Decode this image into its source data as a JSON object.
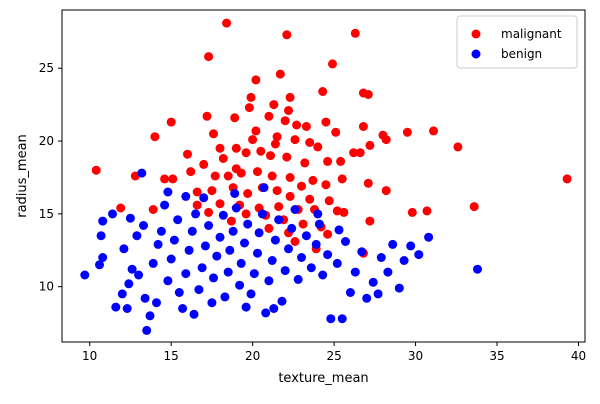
{
  "chart_data": {
    "type": "scatter",
    "title": "",
    "xlabel": "texture_mean",
    "ylabel": "radius_mean",
    "xlim": [
      8.3,
      40.4
    ],
    "ylim": [
      6.2,
      29.0
    ],
    "xticks": [
      10,
      15,
      20,
      25,
      30,
      35,
      40
    ],
    "yticks": [
      10,
      15,
      20,
      25
    ],
    "grid": false,
    "legend_position": "top-right",
    "series": [
      {
        "name": "malignant",
        "color": "#ff0000",
        "points": [
          [
            18.4,
            28.1
          ],
          [
            22.1,
            27.3
          ],
          [
            26.3,
            27.4
          ],
          [
            17.3,
            25.8
          ],
          [
            24.9,
            25.3
          ],
          [
            21.7,
            24.6
          ],
          [
            20.2,
            24.2
          ],
          [
            22.3,
            23.0
          ],
          [
            24.3,
            23.4
          ],
          [
            26.8,
            23.3
          ],
          [
            27.1,
            23.2
          ],
          [
            19.9,
            23.0
          ],
          [
            19.8,
            22.3
          ],
          [
            21.3,
            22.5
          ],
          [
            22.2,
            22.1
          ],
          [
            17.2,
            21.7
          ],
          [
            18.9,
            21.6
          ],
          [
            21.0,
            21.7
          ],
          [
            22.0,
            21.4
          ],
          [
            22.7,
            21.1
          ],
          [
            23.3,
            21.0
          ],
          [
            24.5,
            21.3
          ],
          [
            15.0,
            21.3
          ],
          [
            26.8,
            21.0
          ],
          [
            28.0,
            20.4
          ],
          [
            29.5,
            20.6
          ],
          [
            31.1,
            20.7
          ],
          [
            32.6,
            19.6
          ],
          [
            14.0,
            20.3
          ],
          [
            17.6,
            20.5
          ],
          [
            20.0,
            20.1
          ],
          [
            21.5,
            20.3
          ],
          [
            22.6,
            20.1
          ],
          [
            23.5,
            19.9
          ],
          [
            25.1,
            20.6
          ],
          [
            26.2,
            19.2
          ],
          [
            27.2,
            19.7
          ],
          [
            28.2,
            20.1
          ],
          [
            16.0,
            19.1
          ],
          [
            17.0,
            18.4
          ],
          [
            18.2,
            18.8
          ],
          [
            19.0,
            19.5
          ],
          [
            19.6,
            19.2
          ],
          [
            20.5,
            19.3
          ],
          [
            21.1,
            19.0
          ],
          [
            22.1,
            18.9
          ],
          [
            23.2,
            18.5
          ],
          [
            24.6,
            18.6
          ],
          [
            25.4,
            18.6
          ],
          [
            26.6,
            19.2
          ],
          [
            16.2,
            17.9
          ],
          [
            17.7,
            17.6
          ],
          [
            18.5,
            17.6
          ],
          [
            19.3,
            17.8
          ],
          [
            20.3,
            17.9
          ],
          [
            21.2,
            17.6
          ],
          [
            22.3,
            17.5
          ],
          [
            23.7,
            17.3
          ],
          [
            24.5,
            17.0
          ],
          [
            25.5,
            17.4
          ],
          [
            27.1,
            17.1
          ],
          [
            28.2,
            16.6
          ],
          [
            15.1,
            17.4
          ],
          [
            16.6,
            16.5
          ],
          [
            17.5,
            16.6
          ],
          [
            18.8,
            16.8
          ],
          [
            19.7,
            16.4
          ],
          [
            20.6,
            16.8
          ],
          [
            21.5,
            16.6
          ],
          [
            22.3,
            16.2
          ],
          [
            23.5,
            16.0
          ],
          [
            24.7,
            15.9
          ],
          [
            16.6,
            15.6
          ],
          [
            18.0,
            15.7
          ],
          [
            19.2,
            15.6
          ],
          [
            20.4,
            15.4
          ],
          [
            21.6,
            15.5
          ],
          [
            22.8,
            15.3
          ],
          [
            23.8,
            15.3
          ],
          [
            25.2,
            15.2
          ],
          [
            25.6,
            15.1
          ],
          [
            17.3,
            15.1
          ],
          [
            19.6,
            15.0
          ],
          [
            21.9,
            14.6
          ],
          [
            23.1,
            14.3
          ],
          [
            24.2,
            14.1
          ],
          [
            13.9,
            15.3
          ],
          [
            11.9,
            15.4
          ],
          [
            10.4,
            18.0
          ],
          [
            12.8,
            17.6
          ],
          [
            14.6,
            17.4
          ],
          [
            29.8,
            15.1
          ],
          [
            30.7,
            15.2
          ],
          [
            33.6,
            15.5
          ],
          [
            39.3,
            17.4
          ],
          [
            21.0,
            14.0
          ],
          [
            22.2,
            13.7
          ],
          [
            24.6,
            13.6
          ],
          [
            27.2,
            14.5
          ],
          [
            26.8,
            12.3
          ],
          [
            23.9,
            12.6
          ],
          [
            20.8,
            14.9
          ],
          [
            18.7,
            14.5
          ],
          [
            22.6,
            13.1
          ],
          [
            21.4,
            19.8
          ],
          [
            23.0,
            16.9
          ],
          [
            19.0,
            18.1
          ],
          [
            24.0,
            19.6
          ],
          [
            20.2,
            20.7
          ],
          [
            18.0,
            19.5
          ]
        ]
      },
      {
        "name": "benign",
        "color": "#0000ff",
        "points": [
          [
            9.7,
            10.8
          ],
          [
            10.6,
            11.5
          ],
          [
            10.8,
            12.0
          ],
          [
            10.7,
            13.5
          ],
          [
            10.8,
            14.5
          ],
          [
            11.6,
            8.6
          ],
          [
            12.0,
            9.5
          ],
          [
            12.4,
            10.2
          ],
          [
            12.6,
            11.2
          ],
          [
            12.1,
            12.6
          ],
          [
            12.9,
            13.5
          ],
          [
            13.3,
            14.2
          ],
          [
            13.0,
            10.8
          ],
          [
            13.4,
            9.2
          ],
          [
            13.5,
            7.0
          ],
          [
            13.9,
            11.6
          ],
          [
            14.2,
            12.9
          ],
          [
            14.4,
            13.8
          ],
          [
            14.1,
            8.9
          ],
          [
            14.8,
            10.4
          ],
          [
            15.0,
            11.9
          ],
          [
            15.2,
            13.2
          ],
          [
            15.4,
            14.6
          ],
          [
            15.5,
            9.6
          ],
          [
            15.7,
            8.5
          ],
          [
            15.9,
            10.9
          ],
          [
            16.1,
            12.5
          ],
          [
            16.3,
            13.8
          ],
          [
            16.5,
            15.0
          ],
          [
            16.7,
            9.8
          ],
          [
            16.9,
            11.3
          ],
          [
            17.1,
            12.8
          ],
          [
            17.3,
            14.2
          ],
          [
            17.5,
            8.9
          ],
          [
            17.6,
            10.6
          ],
          [
            17.8,
            12.1
          ],
          [
            18.0,
            13.4
          ],
          [
            18.2,
            14.9
          ],
          [
            18.3,
            9.3
          ],
          [
            18.5,
            11.0
          ],
          [
            18.6,
            12.5
          ],
          [
            18.8,
            13.8
          ],
          [
            19.0,
            15.4
          ],
          [
            19.2,
            10.1
          ],
          [
            19.3,
            11.6
          ],
          [
            19.5,
            13.0
          ],
          [
            19.7,
            14.3
          ],
          [
            19.9,
            9.5
          ],
          [
            20.1,
            10.9
          ],
          [
            20.3,
            12.3
          ],
          [
            20.4,
            13.7
          ],
          [
            20.6,
            15.0
          ],
          [
            20.8,
            8.2
          ],
          [
            21.0,
            10.4
          ],
          [
            21.2,
            11.8
          ],
          [
            21.4,
            13.2
          ],
          [
            21.6,
            14.6
          ],
          [
            21.8,
            9.0
          ],
          [
            22.0,
            11.1
          ],
          [
            22.2,
            12.6
          ],
          [
            22.4,
            14.0
          ],
          [
            22.6,
            15.3
          ],
          [
            22.8,
            10.5
          ],
          [
            23.0,
            12.0
          ],
          [
            23.3,
            13.5
          ],
          [
            23.6,
            11.3
          ],
          [
            23.9,
            12.9
          ],
          [
            24.1,
            14.3
          ],
          [
            24.3,
            10.8
          ],
          [
            24.6,
            12.2
          ],
          [
            24.8,
            7.8
          ],
          [
            25.2,
            11.6
          ],
          [
            25.5,
            7.8
          ],
          [
            25.7,
            13.1
          ],
          [
            26.0,
            9.6
          ],
          [
            26.3,
            11.0
          ],
          [
            26.7,
            12.4
          ],
          [
            27.0,
            9.2
          ],
          [
            27.4,
            10.3
          ],
          [
            27.7,
            9.5
          ],
          [
            27.9,
            12.0
          ],
          [
            28.3,
            11.0
          ],
          [
            28.6,
            12.9
          ],
          [
            29.0,
            9.9
          ],
          [
            29.3,
            11.8
          ],
          [
            29.7,
            12.8
          ],
          [
            30.2,
            12.2
          ],
          [
            30.8,
            13.4
          ],
          [
            33.8,
            11.2
          ],
          [
            25.3,
            13.9
          ],
          [
            24.0,
            15.0
          ],
          [
            20.7,
            16.8
          ],
          [
            18.9,
            16.4
          ],
          [
            17.0,
            16.1
          ],
          [
            15.9,
            16.2
          ],
          [
            14.8,
            16.5
          ],
          [
            13.2,
            17.8
          ],
          [
            14.6,
            15.6
          ],
          [
            12.5,
            14.7
          ],
          [
            11.4,
            15.0
          ],
          [
            12.3,
            8.5
          ],
          [
            13.7,
            8.0
          ],
          [
            16.4,
            8.1
          ],
          [
            19.6,
            8.6
          ],
          [
            21.3,
            8.5
          ]
        ]
      }
    ]
  }
}
